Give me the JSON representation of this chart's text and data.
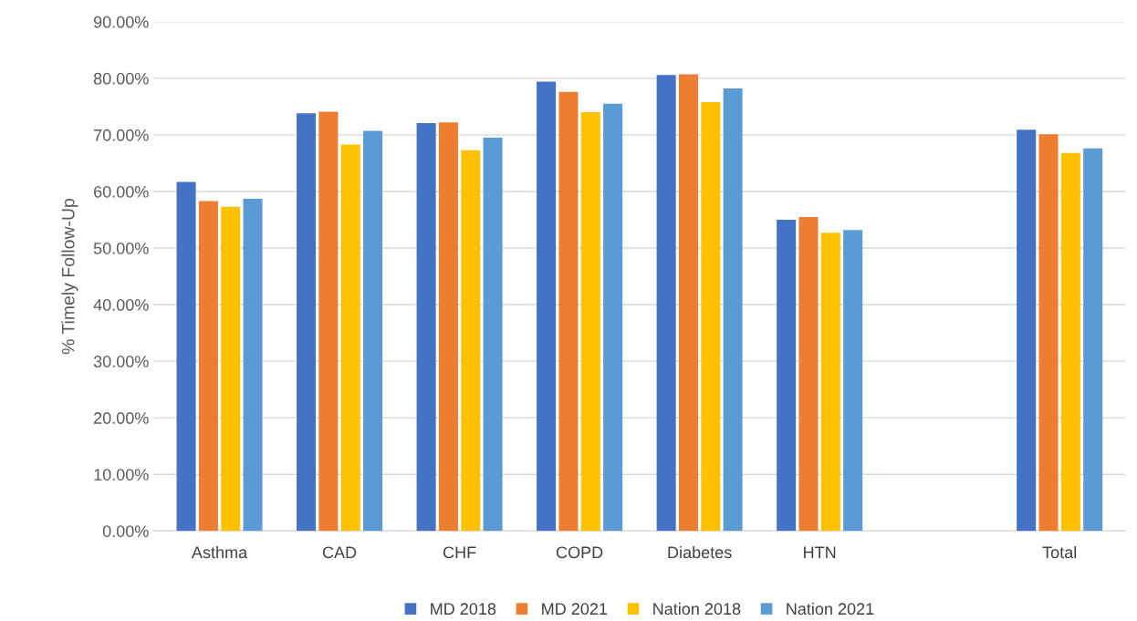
{
  "chart_data": {
    "type": "bar",
    "ylabel": "% Timely Follow-Up",
    "categories": [
      "Asthma",
      "CAD",
      "CHF",
      "COPD",
      "Diabetes",
      "HTN",
      null,
      "Total"
    ],
    "series": [
      {
        "name": "MD 2018",
        "color": "#4472c4",
        "values": [
          61.7,
          73.8,
          72.1,
          79.4,
          80.6,
          55.0,
          null,
          70.9
        ]
      },
      {
        "name": "MD 2021",
        "color": "#ed7d31",
        "values": [
          58.3,
          74.1,
          72.2,
          77.6,
          80.7,
          55.5,
          null,
          70.1
        ]
      },
      {
        "name": "Nation 2018",
        "color": "#ffc000",
        "values": [
          57.3,
          68.3,
          67.3,
          74.0,
          75.8,
          52.7,
          null,
          66.8
        ]
      },
      {
        "name": "Nation 2021",
        "color": "#5b9bd5",
        "values": [
          58.7,
          70.7,
          69.5,
          75.5,
          78.2,
          53.2,
          null,
          67.6
        ]
      }
    ],
    "ylim": [
      0,
      90
    ],
    "yticks": [
      {
        "value": 0,
        "label": "0.00%"
      },
      {
        "value": 10,
        "label": "10.00%"
      },
      {
        "value": 20,
        "label": "20.00%"
      },
      {
        "value": 30,
        "label": "30.00%"
      },
      {
        "value": 40,
        "label": "40.00%"
      },
      {
        "value": 50,
        "label": "50.00%"
      },
      {
        "value": 60,
        "label": "60.00%"
      },
      {
        "value": 70,
        "label": "70.00%"
      },
      {
        "value": 80,
        "label": "80.00%"
      },
      {
        "value": 90,
        "label": "90.00%"
      }
    ],
    "grid": "y",
    "legend": "bottom"
  }
}
